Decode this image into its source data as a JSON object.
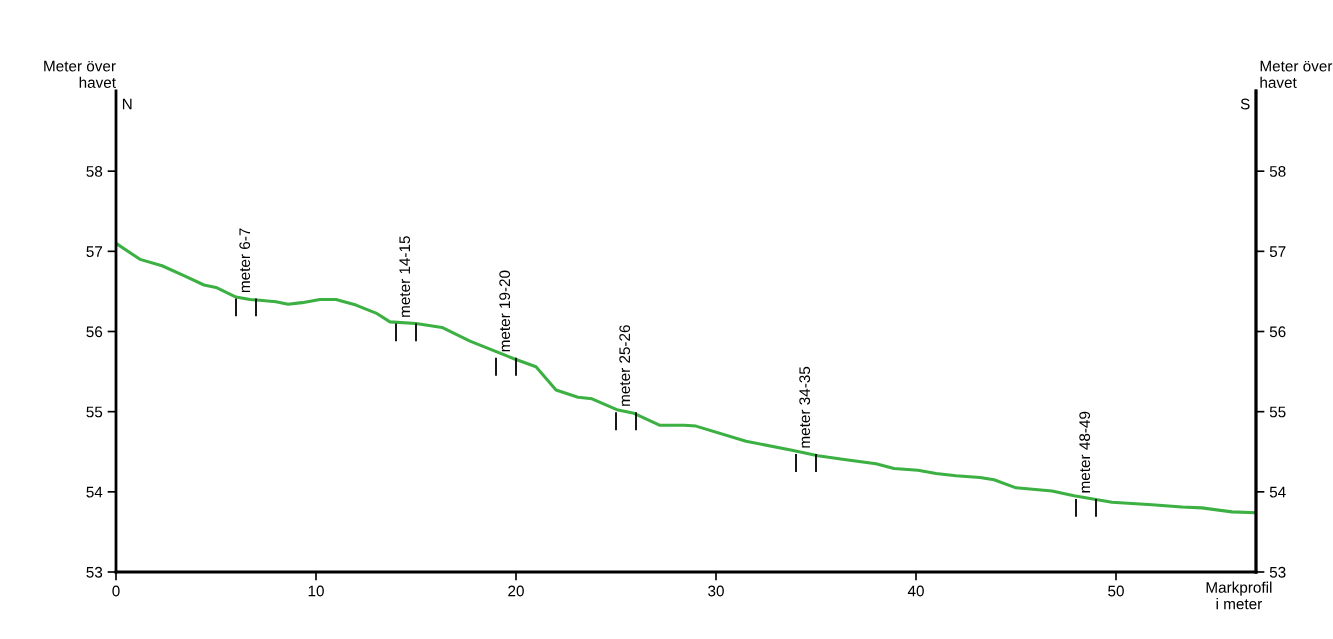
{
  "chart_data": {
    "type": "line",
    "ylabel": "Meter över\nhavet",
    "y2label": "Meter över\nhavet",
    "xlabel": "Markprofil\ni meter",
    "xlim": [
      0,
      57
    ],
    "xticks": [
      0,
      10,
      20,
      30,
      40,
      50
    ],
    "ylim": [
      53,
      59
    ],
    "yticks": [
      53,
      54,
      55,
      56,
      57,
      58
    ],
    "y2lim": [
      53,
      59
    ],
    "y2ticks": [
      53,
      54,
      55,
      56,
      57,
      58
    ],
    "grid": false,
    "legend": false,
    "series": [
      {
        "color": "#3cb043",
        "x": [
          0,
          1.2,
          2.3,
          3.45,
          4.4,
          5,
          6,
          6.7,
          8,
          8.6,
          9.3,
          10.2,
          11,
          12,
          13,
          13.7,
          15,
          16.3,
          17.7,
          19.9,
          21,
          22,
          23.1,
          23.8,
          25.1,
          25.9,
          27.2,
          28.4,
          29,
          31.5,
          33.8,
          35.1,
          36.5,
          38,
          38.9,
          40.1,
          41,
          42,
          43.2,
          43.9,
          45,
          46.8,
          47.9,
          49.8,
          51.8,
          53.3,
          54.3,
          55.8,
          57
        ],
        "values": [
          57.1,
          56.9,
          56.82,
          56.69,
          56.58,
          56.55,
          56.43,
          56.4,
          56.37,
          56.34,
          56.36,
          56.4,
          56.4,
          56.33,
          56.23,
          56.12,
          56.1,
          56.05,
          55.88,
          55.66,
          55.56,
          55.27,
          55.18,
          55.16,
          55.02,
          54.98,
          54.83,
          54.83,
          54.82,
          54.63,
          54.52,
          54.45,
          54.4,
          54.35,
          54.29,
          54.27,
          54.23,
          54.2,
          54.18,
          54.15,
          54.05,
          54.01,
          53.95,
          53.87,
          53.84,
          53.81,
          53.8,
          53.75,
          53.74
        ]
      }
    ],
    "annotations": [
      {
        "text": "meter 6-7",
        "x": 6.5,
        "y": 56.42
      },
      {
        "text": "meter 14-15",
        "x": 14.5,
        "y": 56.11
      },
      {
        "text": "meter 19-20",
        "x": 19.5,
        "y": 55.68
      },
      {
        "text": "meter 25-26",
        "x": 25.5,
        "y": 55.0
      },
      {
        "text": "meter 34-35",
        "x": 34.5,
        "y": 54.48
      },
      {
        "text": "meter 48-49",
        "x": 48.5,
        "y": 53.92
      },
      "N",
      "S"
    ]
  }
}
